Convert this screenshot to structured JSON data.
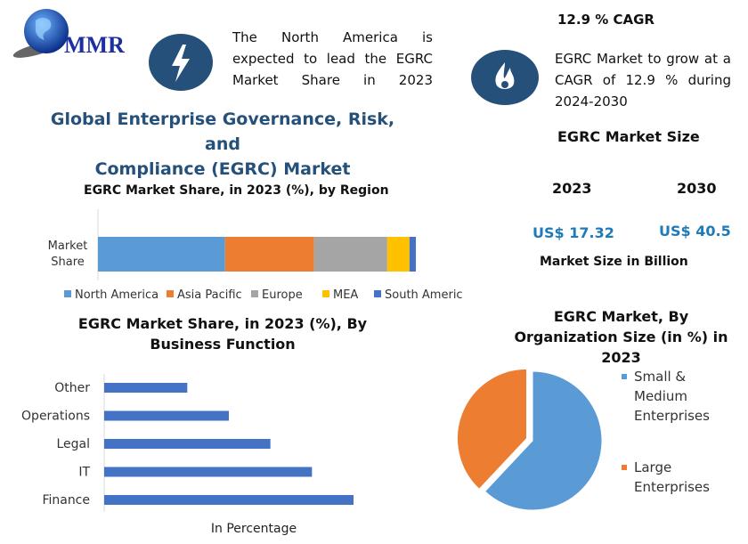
{
  "logo": {
    "text": "MMR"
  },
  "header": {
    "lead_text": "The North America is expected to lead the EGRC Market Share in 2023",
    "title_line1": "Global Enterprise Governance, Risk, and",
    "title_line2": "Compliance (EGRC) Market"
  },
  "cagr": {
    "heading": "12.9 % CAGR",
    "text": "EGRC Market to grow at a CAGR of 12.9 % during 2024-2030"
  },
  "market_size": {
    "heading": "EGRC Market Size",
    "years": [
      "2023",
      "2030"
    ],
    "values": [
      "US$ 17.32",
      "US$ 40.5"
    ],
    "caption": "Market Size in Billion"
  },
  "colors": {
    "accent": "#24507a",
    "value_blue": "#1f7ab8",
    "bar_blue": "#4472c4"
  },
  "chart_data": [
    {
      "type": "bar",
      "stacked": true,
      "orientation": "horizontal",
      "title": "EGRC Market Share, in 2023 (%), by Region",
      "categories": [
        "Market Share"
      ],
      "series": [
        {
          "name": "North America",
          "values": [
            40
          ],
          "color": "#5b9bd5"
        },
        {
          "name": "Asia Pacific",
          "values": [
            28
          ],
          "color": "#ed7d31"
        },
        {
          "name": "Europe",
          "values": [
            23
          ],
          "color": "#a5a5a5"
        },
        {
          "name": "MEA",
          "values": [
            7
          ],
          "color": "#ffc000"
        },
        {
          "name": "South America",
          "values": [
            2
          ],
          "color": "#4472c4"
        }
      ],
      "legend": "bottom"
    },
    {
      "type": "bar",
      "orientation": "horizontal",
      "title": "EGRC Market Share, in 2023 (%), By Business Function",
      "categories": [
        "Other",
        "Operations",
        "Legal",
        "IT",
        "Finance"
      ],
      "values": [
        10,
        15,
        20,
        25,
        30
      ],
      "xlabel": "In Percentage",
      "xlim": [
        0,
        30
      ]
    },
    {
      "type": "pie",
      "title": "EGRC Market, By Organization Size (in %) in 2023",
      "labels": [
        "Small & Medium Enterprises",
        "Large Enterprises"
      ],
      "values": [
        62,
        38
      ],
      "colors": [
        "#5b9bd5",
        "#ed7d31"
      ],
      "legend": "right"
    }
  ]
}
